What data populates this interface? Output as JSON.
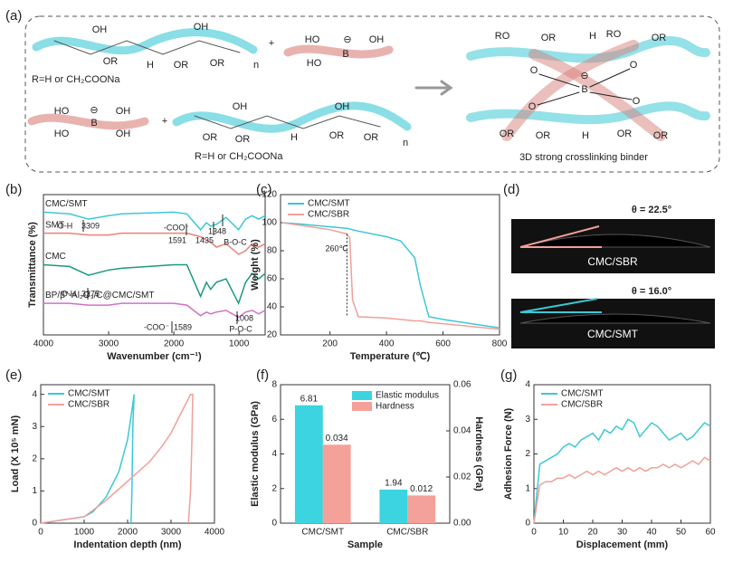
{
  "panel_labels": [
    "(a)",
    "(b)",
    "(c)",
    "(d)",
    "(e)",
    "(f)",
    "(g)"
  ],
  "scheme": {
    "texts": [
      "OH",
      "OH",
      "H",
      "OR",
      "OR",
      "n",
      "OR",
      "R=H or CH₂COONa",
      "HO",
      "B",
      "⊖",
      "OH",
      "HO",
      "+",
      "HO",
      "B",
      "⊖",
      "OH",
      "HO",
      "OH",
      "+",
      "OH",
      "OH",
      "OR",
      "OR",
      "H",
      "OR",
      "OR",
      "n",
      "R=H or CH₂COONa",
      "RO",
      "OR",
      "H",
      "RO",
      "OR",
      "O",
      "O",
      "B",
      "⊖",
      "O",
      "O",
      "OR",
      "OR",
      "H",
      "OR",
      "OR",
      "3D strong crosslinking binder"
    ]
  },
  "images": [
    {
      "angle": "θ = 22.5°",
      "label": "CMC/SBR",
      "color": "#f0a09a"
    },
    {
      "angle": "θ = 16.0°",
      "label": "CMC/SMT",
      "color": "#3cc8d6"
    }
  ],
  "chart_data": [
    {
      "type": "line",
      "xlabel": "Wavenumber (cm⁻¹)",
      "ylabel": "Transmittance (%)",
      "x": [
        4000,
        3600,
        3309,
        3000,
        2800,
        2000,
        1800,
        1591,
        1500,
        1435,
        1348,
        1200,
        1008,
        900,
        800,
        700,
        600
      ],
      "xlim": [
        4000,
        600
      ],
      "xticks": [
        4000,
        3000,
        2000,
        1000
      ],
      "ylim": [
        20,
        100
      ],
      "series": [
        {
          "name": "CMC/SMT",
          "color": "#3cc8d6",
          "values": [
            90,
            89,
            86,
            88,
            89,
            90,
            89,
            80,
            84,
            82,
            83,
            87,
            80,
            86,
            88,
            86,
            88
          ]
        },
        {
          "name": "SMT",
          "color": "#e8827c",
          "values": [
            78,
            78,
            77,
            77,
            78,
            78,
            78,
            76,
            74,
            73,
            70,
            72,
            66,
            68,
            72,
            70,
            72
          ]
        },
        {
          "name": "CMC",
          "color": "#1a9a80",
          "values": [
            60,
            59,
            54,
            57,
            58,
            60,
            60,
            42,
            50,
            46,
            50,
            52,
            38,
            50,
            55,
            52,
            55
          ]
        },
        {
          "name": "BP/β''-Al₂O₃/C@CMC/SMT",
          "color": "#d070c8",
          "values": [
            38,
            38,
            37,
            37,
            38,
            38,
            37,
            31,
            33,
            32,
            33,
            34,
            30,
            33,
            34,
            32,
            34
          ]
        }
      ],
      "annotations": [
        "O-H",
        "3309",
        "-COO⁻",
        "1591",
        "1435",
        "1348",
        "B-O-C",
        "O-H",
        "3275",
        "-COO⁻",
        "1589",
        "1008",
        "P-O-C"
      ]
    },
    {
      "type": "line",
      "xlabel": "Temperature (℃)",
      "ylabel": "Weight (%)",
      "x": [
        30,
        100,
        200,
        260,
        270,
        280,
        300,
        400,
        450,
        500,
        520,
        550,
        600,
        700,
        800
      ],
      "xlim": [
        25,
        800
      ],
      "xticks": [
        200,
        400,
        600,
        800
      ],
      "ylim": [
        20,
        120
      ],
      "yticks": [
        20,
        40,
        60,
        80,
        100,
        120
      ],
      "legend": "upper left",
      "series": [
        {
          "name": "CMC/SMT",
          "color": "#3cc8d6",
          "values": [
            100,
            99,
            97,
            96,
            95.5,
            95,
            94,
            90,
            87,
            75,
            55,
            33,
            31,
            28,
            25
          ]
        },
        {
          "name": "CMC/SBR",
          "color": "#f0a09a",
          "values": [
            100,
            98,
            95,
            92,
            89,
            45,
            33,
            32,
            31,
            30,
            30,
            29,
            28,
            26,
            24
          ]
        }
      ],
      "annotations": [
        "260℃"
      ]
    },
    {
      "type": "line",
      "xlabel": "Indentation depth (nm)",
      "ylabel": "Load (X 10⁵ mN)",
      "xlim": [
        0,
        4000
      ],
      "xticks": [
        0,
        1000,
        2000,
        3000,
        4000
      ],
      "ylim": [
        0,
        4.3
      ],
      "yticks": [
        0,
        1,
        2,
        3,
        4
      ],
      "legend": "upper left",
      "series": [
        {
          "name": "CMC/SMT",
          "color": "#3cc8d6",
          "x": [
            0,
            500,
            1000,
            1200,
            1500,
            1800,
            2000,
            2100,
            2150,
            2120,
            2100,
            2080
          ],
          "values": [
            0,
            0.1,
            0.2,
            0.35,
            0.8,
            1.6,
            2.6,
            3.5,
            4.0,
            3.0,
            1.0,
            0
          ]
        },
        {
          "name": "CMC/SBR",
          "color": "#f0a09a",
          "x": [
            0,
            1000,
            1500,
            2000,
            2500,
            2800,
            3000,
            3300,
            3450,
            3500,
            3480,
            3450,
            3400
          ],
          "values": [
            0,
            0.2,
            0.7,
            1.3,
            1.9,
            2.4,
            2.8,
            3.6,
            4.0,
            4.0,
            2.5,
            1,
            0
          ]
        }
      ]
    },
    {
      "type": "bar",
      "xlabel": "Sample",
      "ylabel": "Elastic modulus (GPa)",
      "y2label": "Hardness (GPa)",
      "categories": [
        "CMC/SMT",
        "CMC/SBR"
      ],
      "ylim": [
        0,
        8
      ],
      "yticks": [
        0,
        2,
        4,
        6,
        8
      ],
      "y2lim": [
        0,
        0.06
      ],
      "y2ticks": [
        {
          "value": 0,
          "label": "0.00"
        },
        0.02,
        0.04,
        0.06
      ],
      "legend": "upper right",
      "series": [
        {
          "name": "Elastic modulus",
          "color": "#3cd4e0",
          "values": [
            6.81,
            1.94
          ]
        },
        {
          "name": "Hardness",
          "color": "#f4a19a",
          "values": [
            0.034,
            0.012
          ],
          "axis": "y2"
        }
      ]
    },
    {
      "type": "line",
      "xlabel": "Displacement (mm)",
      "ylabel": "Adhesion Force (N)",
      "x": [
        0,
        2,
        4,
        6,
        8,
        10,
        12,
        14,
        16,
        18,
        20,
        22,
        24,
        26,
        28,
        30,
        32,
        34,
        36,
        38,
        40,
        42,
        44,
        46,
        48,
        50,
        52,
        54,
        56,
        58,
        60
      ],
      "xlim": [
        0,
        60
      ],
      "xticks": [
        0,
        10,
        20,
        30,
        40,
        50,
        60
      ],
      "ylim": [
        0,
        4
      ],
      "yticks": [
        0,
        1,
        2,
        3,
        4
      ],
      "legend": "upper left",
      "series": [
        {
          "name": "CMC/SMT",
          "color": "#3cc8d6",
          "values": [
            0,
            1.7,
            1.8,
            1.9,
            2.0,
            2.2,
            2.3,
            2.2,
            2.4,
            2.5,
            2.6,
            2.4,
            2.7,
            2.6,
            2.8,
            2.7,
            3.0,
            2.9,
            2.5,
            2.7,
            2.9,
            2.8,
            2.6,
            2.4,
            2.5,
            2.6,
            2.4,
            2.5,
            2.7,
            2.9,
            2.8
          ]
        },
        {
          "name": "CMC/SBR",
          "color": "#f0a09a",
          "values": [
            0,
            1.1,
            1.2,
            1.2,
            1.3,
            1.3,
            1.4,
            1.3,
            1.4,
            1.5,
            1.4,
            1.5,
            1.4,
            1.5,
            1.6,
            1.5,
            1.6,
            1.5,
            1.6,
            1.5,
            1.6,
            1.6,
            1.7,
            1.6,
            1.7,
            1.6,
            1.7,
            1.8,
            1.7,
            1.9,
            1.8
          ]
        }
      ]
    }
  ]
}
